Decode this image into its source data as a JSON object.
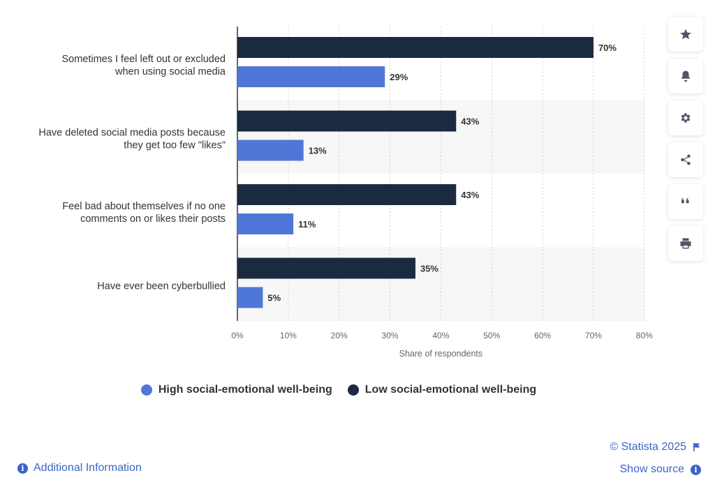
{
  "chart_data": {
    "type": "bar",
    "orientation": "horizontal",
    "categories": [
      [
        "Sometimes I feel left out or excluded",
        "when using social media"
      ],
      [
        "Have deleted social media posts because",
        "they get too few \"likes\""
      ],
      [
        "Feel bad about themselves if no one",
        "comments on or likes their posts"
      ],
      [
        "Have ever been cyberbullied"
      ]
    ],
    "series": [
      {
        "name": "Low social-emotional well-being",
        "color": "#1b2a40",
        "values": [
          70,
          43,
          43,
          35
        ]
      },
      {
        "name": "High social-emotional well-being",
        "color": "#4f77d8",
        "values": [
          29,
          13,
          11,
          5
        ]
      }
    ],
    "xlabel": "Share of respondents",
    "xlim": [
      0,
      80
    ],
    "x_ticks": [
      0,
      10,
      20,
      30,
      40,
      50,
      60,
      70,
      80
    ],
    "tick_suffix": "%",
    "grid": true,
    "legend_position": "bottom"
  },
  "legend": [
    {
      "label": "High social-emotional well-being",
      "color": "#4f77d8"
    },
    {
      "label": "Low social-emotional well-being",
      "color": "#1b2a40"
    }
  ],
  "tools": [
    {
      "name": "favorite",
      "icon": "star-icon"
    },
    {
      "name": "notification",
      "icon": "bell-icon"
    },
    {
      "name": "settings",
      "icon": "gear-icon"
    },
    {
      "name": "share",
      "icon": "share-icon"
    },
    {
      "name": "cite",
      "icon": "quote-icon"
    },
    {
      "name": "print",
      "icon": "print-icon"
    }
  ],
  "footer": {
    "copyright": "© Statista 2025",
    "show_source": "Show source",
    "additional_info": "Additional Information"
  },
  "colors": {
    "link": "#3c64c8",
    "band": "#f7f7f7"
  }
}
